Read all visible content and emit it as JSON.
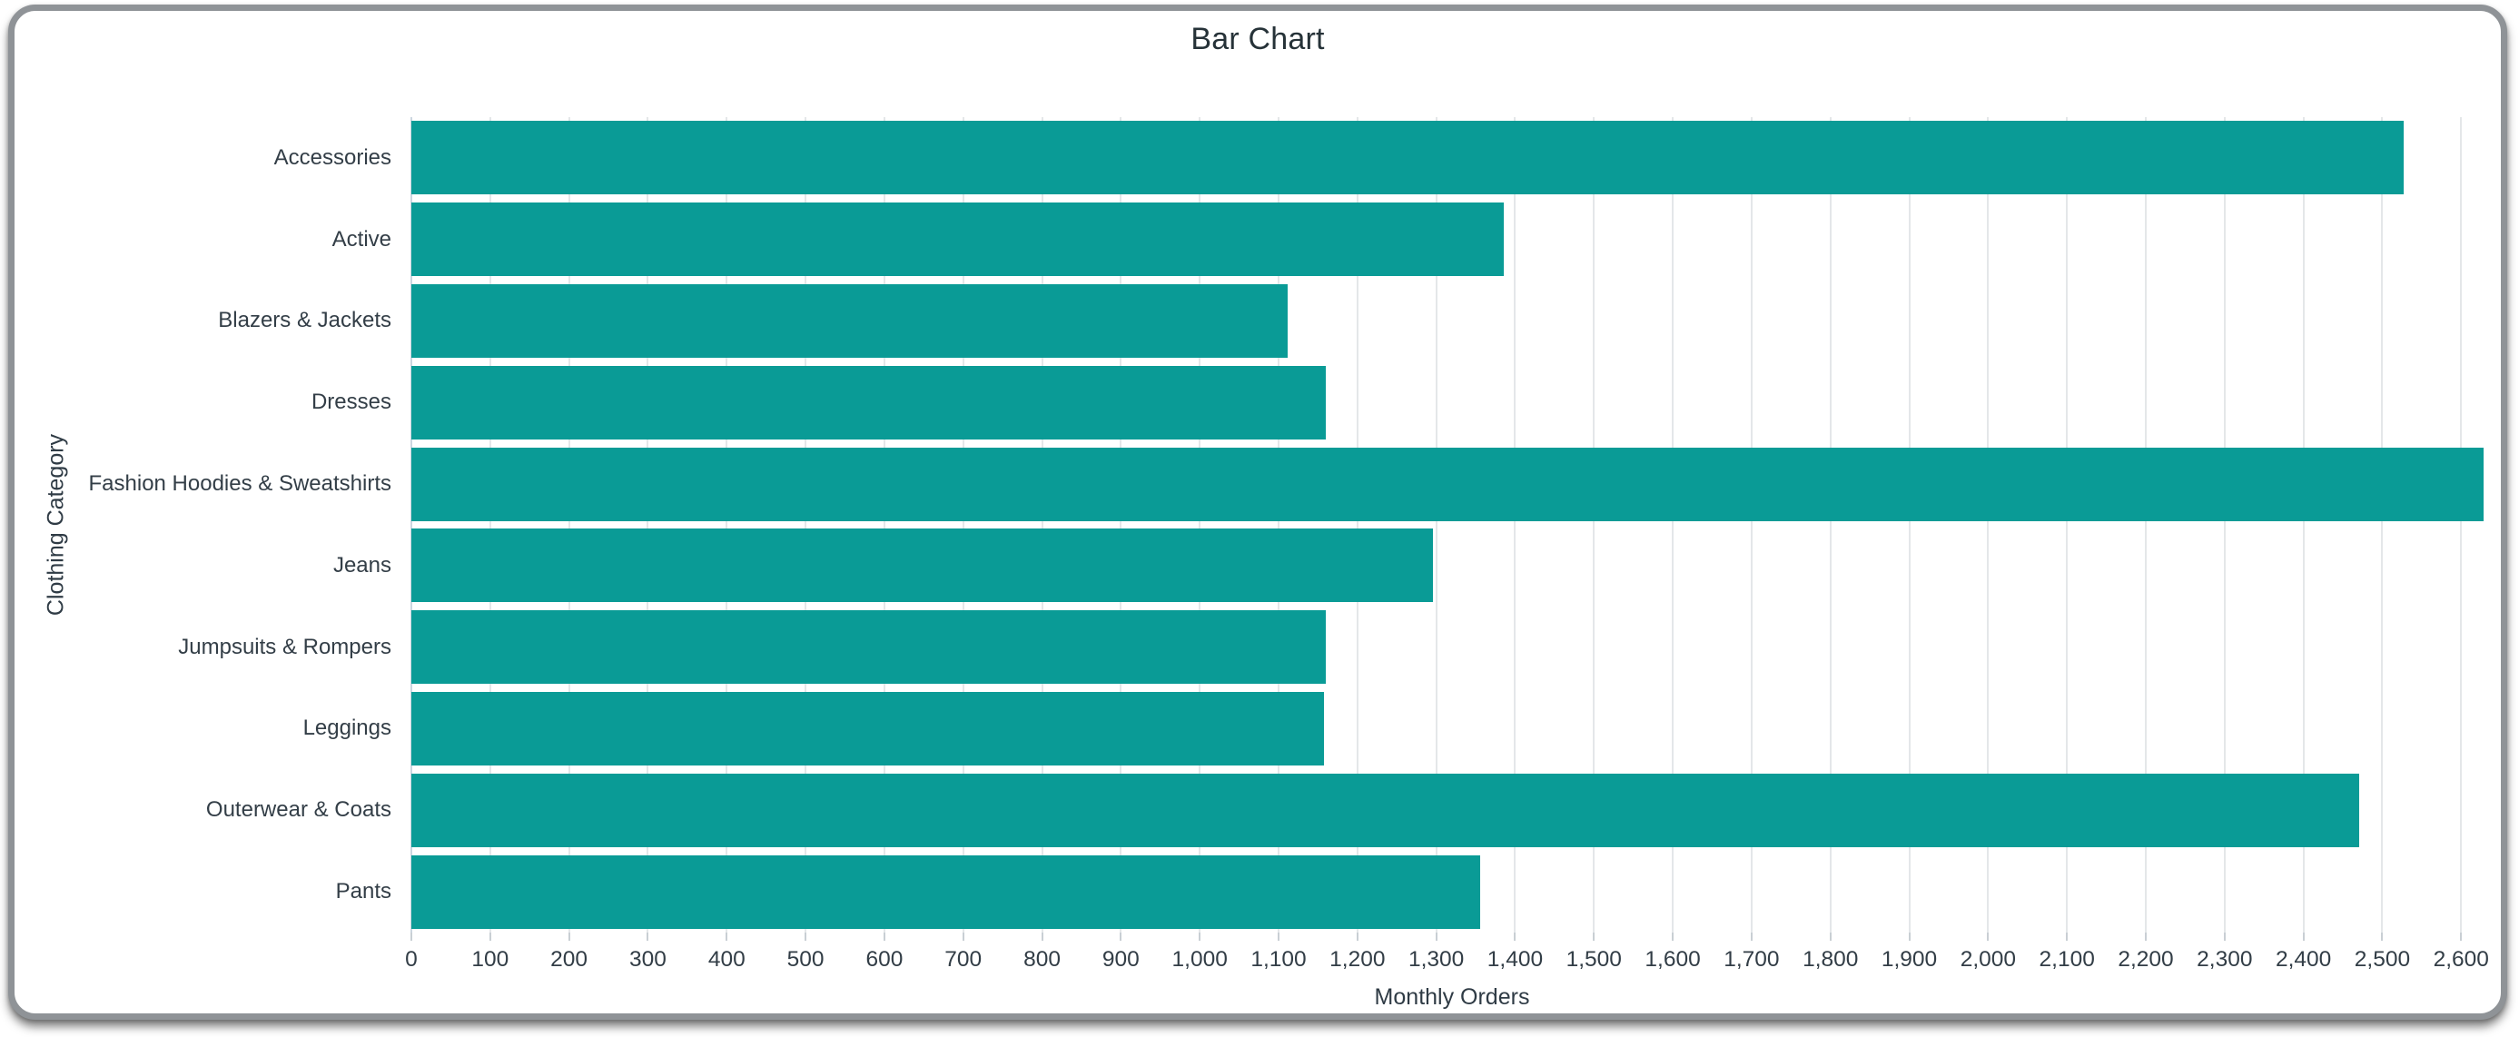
{
  "window": {
    "title": "Bar Chart"
  },
  "chart_data": {
    "type": "bar",
    "orientation": "horizontal",
    "title": "Bar Chart",
    "xlabel": "Monthly Orders",
    "ylabel": "Clothing Category",
    "categories": [
      "Accessories",
      "Active",
      "Blazers & Jackets",
      "Dresses",
      "Fashion Hoodies & Sweatshirts",
      "Jeans",
      "Jumpsuits & Rompers",
      "Leggings",
      "Outerwear & Coats",
      "Pants"
    ],
    "values": [
      2527,
      1386,
      1112,
      1160,
      2628,
      1296,
      1160,
      1158,
      2471,
      1356
    ],
    "xlim": [
      0,
      2640
    ],
    "xtick_step": 100,
    "xtick_values": [
      0,
      100,
      200,
      300,
      400,
      500,
      600,
      700,
      800,
      900,
      1000,
      1100,
      1200,
      1300,
      1400,
      1500,
      1600,
      1700,
      1800,
      1900,
      2000,
      2100,
      2200,
      2300,
      2400,
      2500,
      2600
    ],
    "xtick_labels": [
      "0",
      "100",
      "200",
      "300",
      "400",
      "500",
      "600",
      "700",
      "800",
      "900",
      "1,000",
      "1,100",
      "1,200",
      "1,300",
      "1,400",
      "1,500",
      "1,600",
      "1,700",
      "1,800",
      "1,900",
      "2,000",
      "2,100",
      "2,200",
      "2,300",
      "2,400",
      "2,500",
      "2,600"
    ],
    "grid": true,
    "legend": false,
    "bar_color": "#0a9b96",
    "gridline_color": "#e4e7e9",
    "zero_line_color": "#ccd6e0",
    "text_color": "#333e47",
    "background_color": "#ffffff"
  }
}
